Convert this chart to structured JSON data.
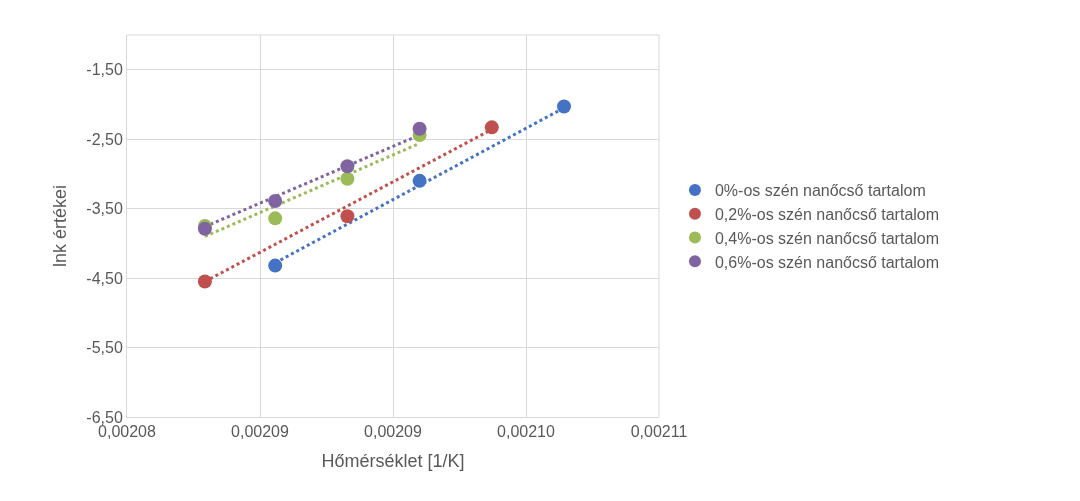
{
  "chart_data": {
    "type": "scatter",
    "xlabel": "Hőmérséklet [1/K]",
    "ylabel": "lnk értékei",
    "xlim": [
      0.00208,
      0.002108
    ],
    "xticks": [
      {
        "value": 0.00208,
        "label": "0,00208"
      },
      {
        "value": 0.002087,
        "label": "0,00209"
      },
      {
        "value": 0.002094,
        "label": "0,00209"
      },
      {
        "value": 0.002101,
        "label": "0,00210"
      },
      {
        "value": 0.002108,
        "label": "0,00211"
      }
    ],
    "ylim": [
      -6.5,
      -1.0
    ],
    "yticks": [
      {
        "value": -6.5,
        "label": "-6,50"
      },
      {
        "value": -5.5,
        "label": "-5,50"
      },
      {
        "value": -4.5,
        "label": "-4,50"
      },
      {
        "value": -3.5,
        "label": "-3,50"
      },
      {
        "value": -2.5,
        "label": "-2,50"
      },
      {
        "value": -1.5,
        "label": "-1,50"
      }
    ],
    "grid": true,
    "legend": "right",
    "marker": "circle",
    "series": [
      {
        "name": "0%-os szén nanőcső tartalom",
        "color": "#4472c4",
        "x": [
          0.0020878,
          0.0020954,
          0.002103
        ],
        "values": [
          -4.32,
          -3.1,
          -2.03
        ]
      },
      {
        "name": "0,2%-os szén nanőcső tartalom",
        "color": "#c0504d",
        "x": [
          0.0020841,
          0.0020916,
          0.0020992
        ],
        "values": [
          -4.55,
          -3.61,
          -2.33
        ]
      },
      {
        "name": "0,4%-os szén nanőcső tartalom",
        "color": "#9bbb59",
        "x": [
          0.0020841,
          0.0020878,
          0.0020916,
          0.0020954
        ],
        "values": [
          -3.75,
          -3.64,
          -3.07,
          -2.44
        ]
      },
      {
        "name": "0,6%-os szén nanőcső tartalom",
        "color": "#8064a2",
        "x": [
          0.0020841,
          0.0020878,
          0.0020916,
          0.0020954
        ],
        "values": [
          -3.79,
          -3.39,
          -2.89,
          -2.35
        ]
      },
      {
        "type": "line",
        "marker": "none",
        "line_style": "dotted",
        "color": "#4472c4",
        "x": [
          0.0020878,
          0.002103
        ],
        "values": [
          -4.28,
          -2.05
        ]
      },
      {
        "type": "line",
        "marker": "none",
        "line_style": "dotted",
        "color": "#c0504d",
        "x": [
          0.0020841,
          0.0020992
        ],
        "values": [
          -4.55,
          -2.36
        ]
      },
      {
        "type": "line",
        "marker": "none",
        "line_style": "dotted",
        "color": "#9bbb59",
        "x": [
          0.0020841,
          0.0020954
        ],
        "values": [
          -3.9,
          -2.56
        ]
      },
      {
        "type": "line",
        "marker": "none",
        "line_style": "dotted",
        "color": "#8064a2",
        "x": [
          0.0020841,
          0.0020954
        ],
        "values": [
          -3.76,
          -2.44
        ]
      }
    ]
  }
}
